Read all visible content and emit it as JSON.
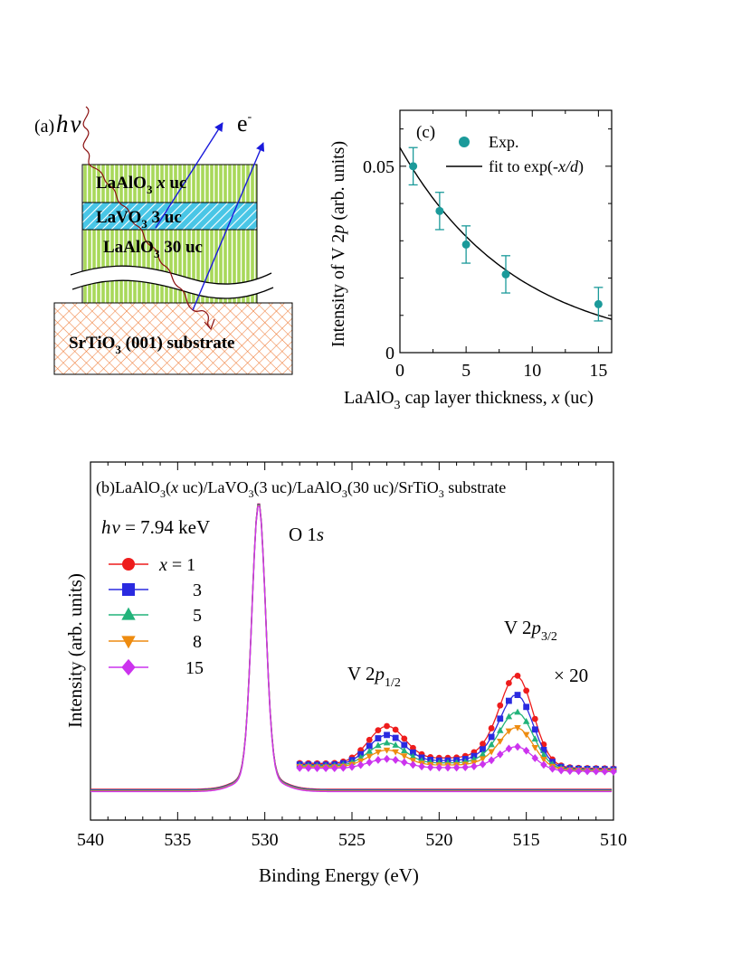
{
  "panel_a": {
    "label": "(a)",
    "photon_h": "h",
    "photon_nu": "ν",
    "electron_e": "e",
    "electron_sup": "-",
    "layers": {
      "cap": {
        "main": "LaAlO",
        "sub": "3",
        "rest_italic": " x",
        "rest": " uc"
      },
      "lvo": {
        "main": "LaVO",
        "sub": "3",
        "rest": " 3 uc"
      },
      "buffer": {
        "main": "LaAlO",
        "sub": "3",
        "rest": " 30 uc"
      },
      "substrate": {
        "main": "SrTiO",
        "sub": "3",
        "rest": " (001) substrate"
      }
    },
    "colors": {
      "green": "#a8d85a",
      "stripe": "#ffffff",
      "cyan": "#49c6e6",
      "orange": "#f07d3a",
      "arrow": "#1a1adb",
      "wave": "#8b1010"
    }
  },
  "chart_data": [
    {
      "id": "c",
      "type": "scatter",
      "panel_label": "(c)",
      "xlabel_pre": "LaAlO",
      "xlabel_sub": "3",
      "xlabel_mid": " cap layer thickness, ",
      "xlabel_it": "x",
      "xlabel_post": " (uc)",
      "ylabel_pre": "Intensity of V 2",
      "ylabel_it": "p",
      "ylabel_post": " (arb. units)",
      "xlim": [
        0,
        16
      ],
      "ylim": [
        0,
        0.065
      ],
      "xticks": [
        0,
        5,
        10,
        15
      ],
      "xtick_labels": [
        "0",
        "5",
        "10",
        "15"
      ],
      "yticks": [
        0,
        0.05
      ],
      "ytick_labels": [
        "0",
        "0.05"
      ],
      "x": [
        1,
        3,
        5,
        8,
        15
      ],
      "y": [
        0.05,
        0.038,
        0.029,
        0.021,
        0.013
      ],
      "err": [
        0.005,
        0.005,
        0.005,
        0.005,
        0.0045
      ],
      "fit": {
        "A": 0.055,
        "d": 8.8
      },
      "legend": {
        "exp": "Exp.",
        "fit_pre": "fit to exp(-",
        "fit_it": "x/d",
        "fit_post": ")"
      },
      "marker_color": "#1b9a9a"
    },
    {
      "id": "b",
      "type": "line",
      "title_pre": "(b)LaAlO",
      "title_sub1": "3",
      "title_a": "(",
      "title_it": "x",
      "title_b": " uc)/LaVO",
      "title_sub2": "3",
      "title_c": "(3 uc)/LaAlO",
      "title_sub3": "3",
      "title_d": "(30 uc)/SrTiO",
      "title_sub4": "3",
      "title_e": " substrate",
      "photon": {
        "h": "h",
        "nu": "ν",
        "text": " = 7.94 keV"
      },
      "xlabel": "Binding Energy (eV)",
      "ylabel": "Intensity (arb. units)",
      "xlim": [
        540,
        510
      ],
      "xticks": [
        540,
        535,
        530,
        525,
        520,
        515,
        510
      ],
      "xtick_labels": [
        "540",
        "535",
        "530",
        "525",
        "520",
        "515",
        "510"
      ],
      "annotations": {
        "o1s": {
          "pre": "O 1",
          "it": "s"
        },
        "v2p12": {
          "pre": "V 2",
          "it": "p",
          "sub": "1/2"
        },
        "v2p32": {
          "pre": "V 2",
          "it": "p",
          "sub": "3/2"
        },
        "scale": "× 20"
      },
      "legend_x_label": "x",
      "legend_eq": " = ",
      "series": [
        {
          "name": "1",
          "color": "#ee1c1c",
          "marker": "circle",
          "scale": 1.0
        },
        {
          "name": "3",
          "color": "#2a2ae0",
          "marker": "square",
          "scale": 0.8
        },
        {
          "name": "5",
          "color": "#22b37a",
          "marker": "triangle-up",
          "scale": 0.62
        },
        {
          "name": "8",
          "color": "#ee8c10",
          "marker": "triangle-down",
          "scale": 0.46
        },
        {
          "name": "15",
          "color": "#cc33ee",
          "marker": "diamond",
          "scale": 0.26
        }
      ]
    }
  ]
}
